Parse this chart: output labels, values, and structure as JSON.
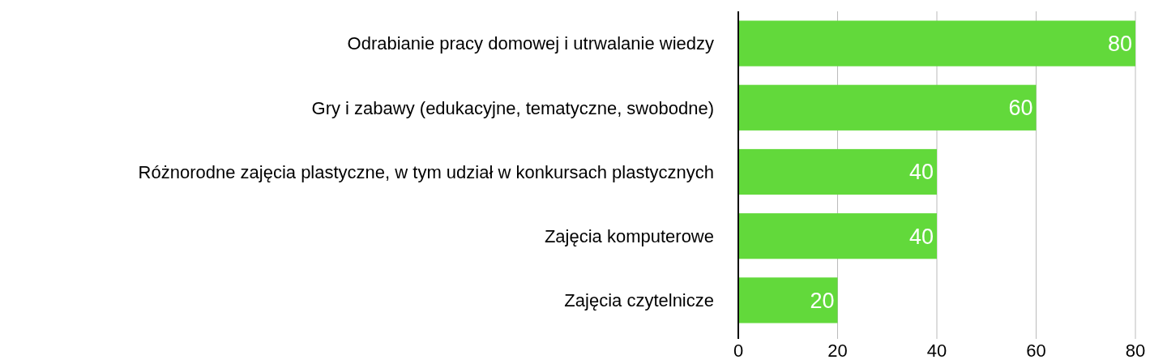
{
  "chart_data": {
    "type": "bar",
    "orientation": "horizontal",
    "categories": [
      "Odrabianie pracy domowej i utrwalanie wiedzy",
      "Gry i zabawy (edukacyjne, tematyczne, swobodne)",
      "Różnorodne zajęcia plastyczne, w tym udział w konkursach plastycznych",
      "Zajęcia komputerowe",
      "Zajęcia czytelnicze"
    ],
    "values": [
      80,
      60,
      40,
      40,
      20
    ],
    "color": "#62d93b",
    "xlim": [
      0,
      80
    ],
    "xticks": [
      0,
      20,
      40,
      60,
      80
    ],
    "grid": "x",
    "data_labels": true
  }
}
